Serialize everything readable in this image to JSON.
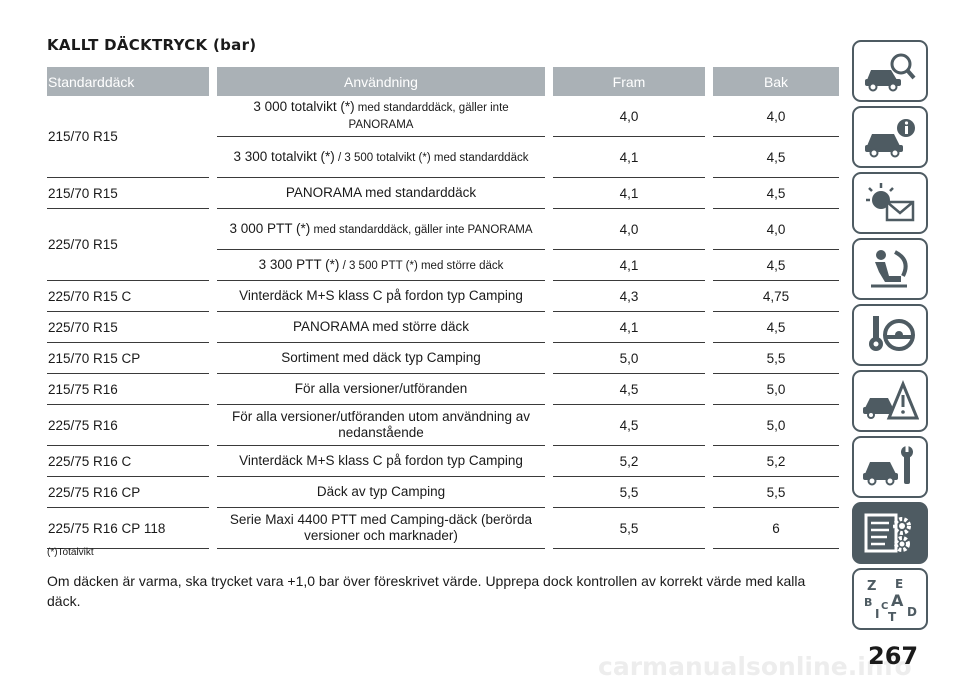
{
  "heading": "KALLT DÄCKTRYCK (bar)",
  "table": {
    "headers": {
      "tyre": "Standarddäck",
      "use": "Användning",
      "front": "Fram",
      "rear": "Bak"
    },
    "rows": [
      {
        "tyre": "215/70 R15",
        "use_a": "3 000 totalvikt (*)",
        "use_b": " med standarddäck, gäller inte PANORAMA",
        "front": "4,0",
        "rear": "4,0"
      },
      {
        "use_a": "3 300 totalvikt (*)",
        "use_b": " / 3 500 totalvikt (*) med standarddäck",
        "front": "4,1",
        "rear": "4,5"
      },
      {
        "tyre": "215/70 R15",
        "use": "PANORAMA med standarddäck",
        "front": "4,1",
        "rear": "4,5"
      },
      {
        "tyre": "225/70 R15",
        "use_a": "3 000 PTT (*)",
        "use_b": " med standarddäck, gäller inte PANORAMA",
        "front": "4,0",
        "rear": "4,0"
      },
      {
        "use_a": "3 300 PTT (*)",
        "use_b": " / 3 500 PTT (*) med större däck",
        "front": "4,1",
        "rear": "4,5"
      },
      {
        "tyre": "225/70 R15 C",
        "use": "Vinterdäck M+S klass C på fordon typ Camping",
        "front": "4,3",
        "rear": "4,75"
      },
      {
        "tyre": "225/70 R15",
        "use": "PANORAMA med större däck",
        "front": "4,1",
        "rear": "4,5"
      },
      {
        "tyre": "215/70 R15 CP",
        "use": "Sortiment med däck typ Camping",
        "front": "5,0",
        "rear": "5,5"
      },
      {
        "tyre": "215/75 R16",
        "use": "För alla versioner/utföranden",
        "front": "4,5",
        "rear": "5,0"
      },
      {
        "tyre": "225/75 R16",
        "use": "För alla versioner/utföranden utom användning av nedanstående",
        "front": "4,5",
        "rear": "5,0"
      },
      {
        "tyre": "225/75 R16 C",
        "use": "Vinterdäck M+S klass C på fordon typ Camping",
        "front": "5,2",
        "rear": "5,2"
      },
      {
        "tyre": "225/75 R16 CP",
        "use": "Däck av typ Camping",
        "front": "5,5",
        "rear": "5,5"
      },
      {
        "tyre": "225/75 R16 CP 118",
        "use": "Serie Maxi 4400 PTT med Camping-däck (berörda versioner och marknader)",
        "front": "5,5",
        "rear": "6"
      }
    ]
  },
  "footnote": "(*)Totalvikt",
  "paragraph": "Om däcken är varma, ska trycket vara +1,0 bar över föreskrivet värde. Upprepa dock kontrollen av korrekt värde med kalla däck.",
  "page_number": "267",
  "watermark": "carmanualsonline.info",
  "sidebar": {
    "tabs": [
      {
        "icon": "car-magnifier-icon",
        "active": false
      },
      {
        "icon": "car-info-icon",
        "active": false
      },
      {
        "icon": "warning-light-envelope-icon",
        "active": false
      },
      {
        "icon": "seated-person-airbag-icon",
        "active": false
      },
      {
        "icon": "key-steering-wheel-icon",
        "active": false
      },
      {
        "icon": "car-warning-triangle-icon",
        "active": false
      },
      {
        "icon": "car-wrench-icon",
        "active": false
      },
      {
        "icon": "list-gear-icon",
        "active": true
      },
      {
        "icon": "alphabet-index-icon",
        "active": false
      }
    ],
    "index_letters": [
      "Z",
      "E",
      "B",
      "A",
      "I",
      "C",
      "D",
      "T"
    ]
  },
  "colors": {
    "header_bg": "#aab1b6",
    "tab_border": "#4e5b62",
    "tab_active": "#4e5b62"
  }
}
